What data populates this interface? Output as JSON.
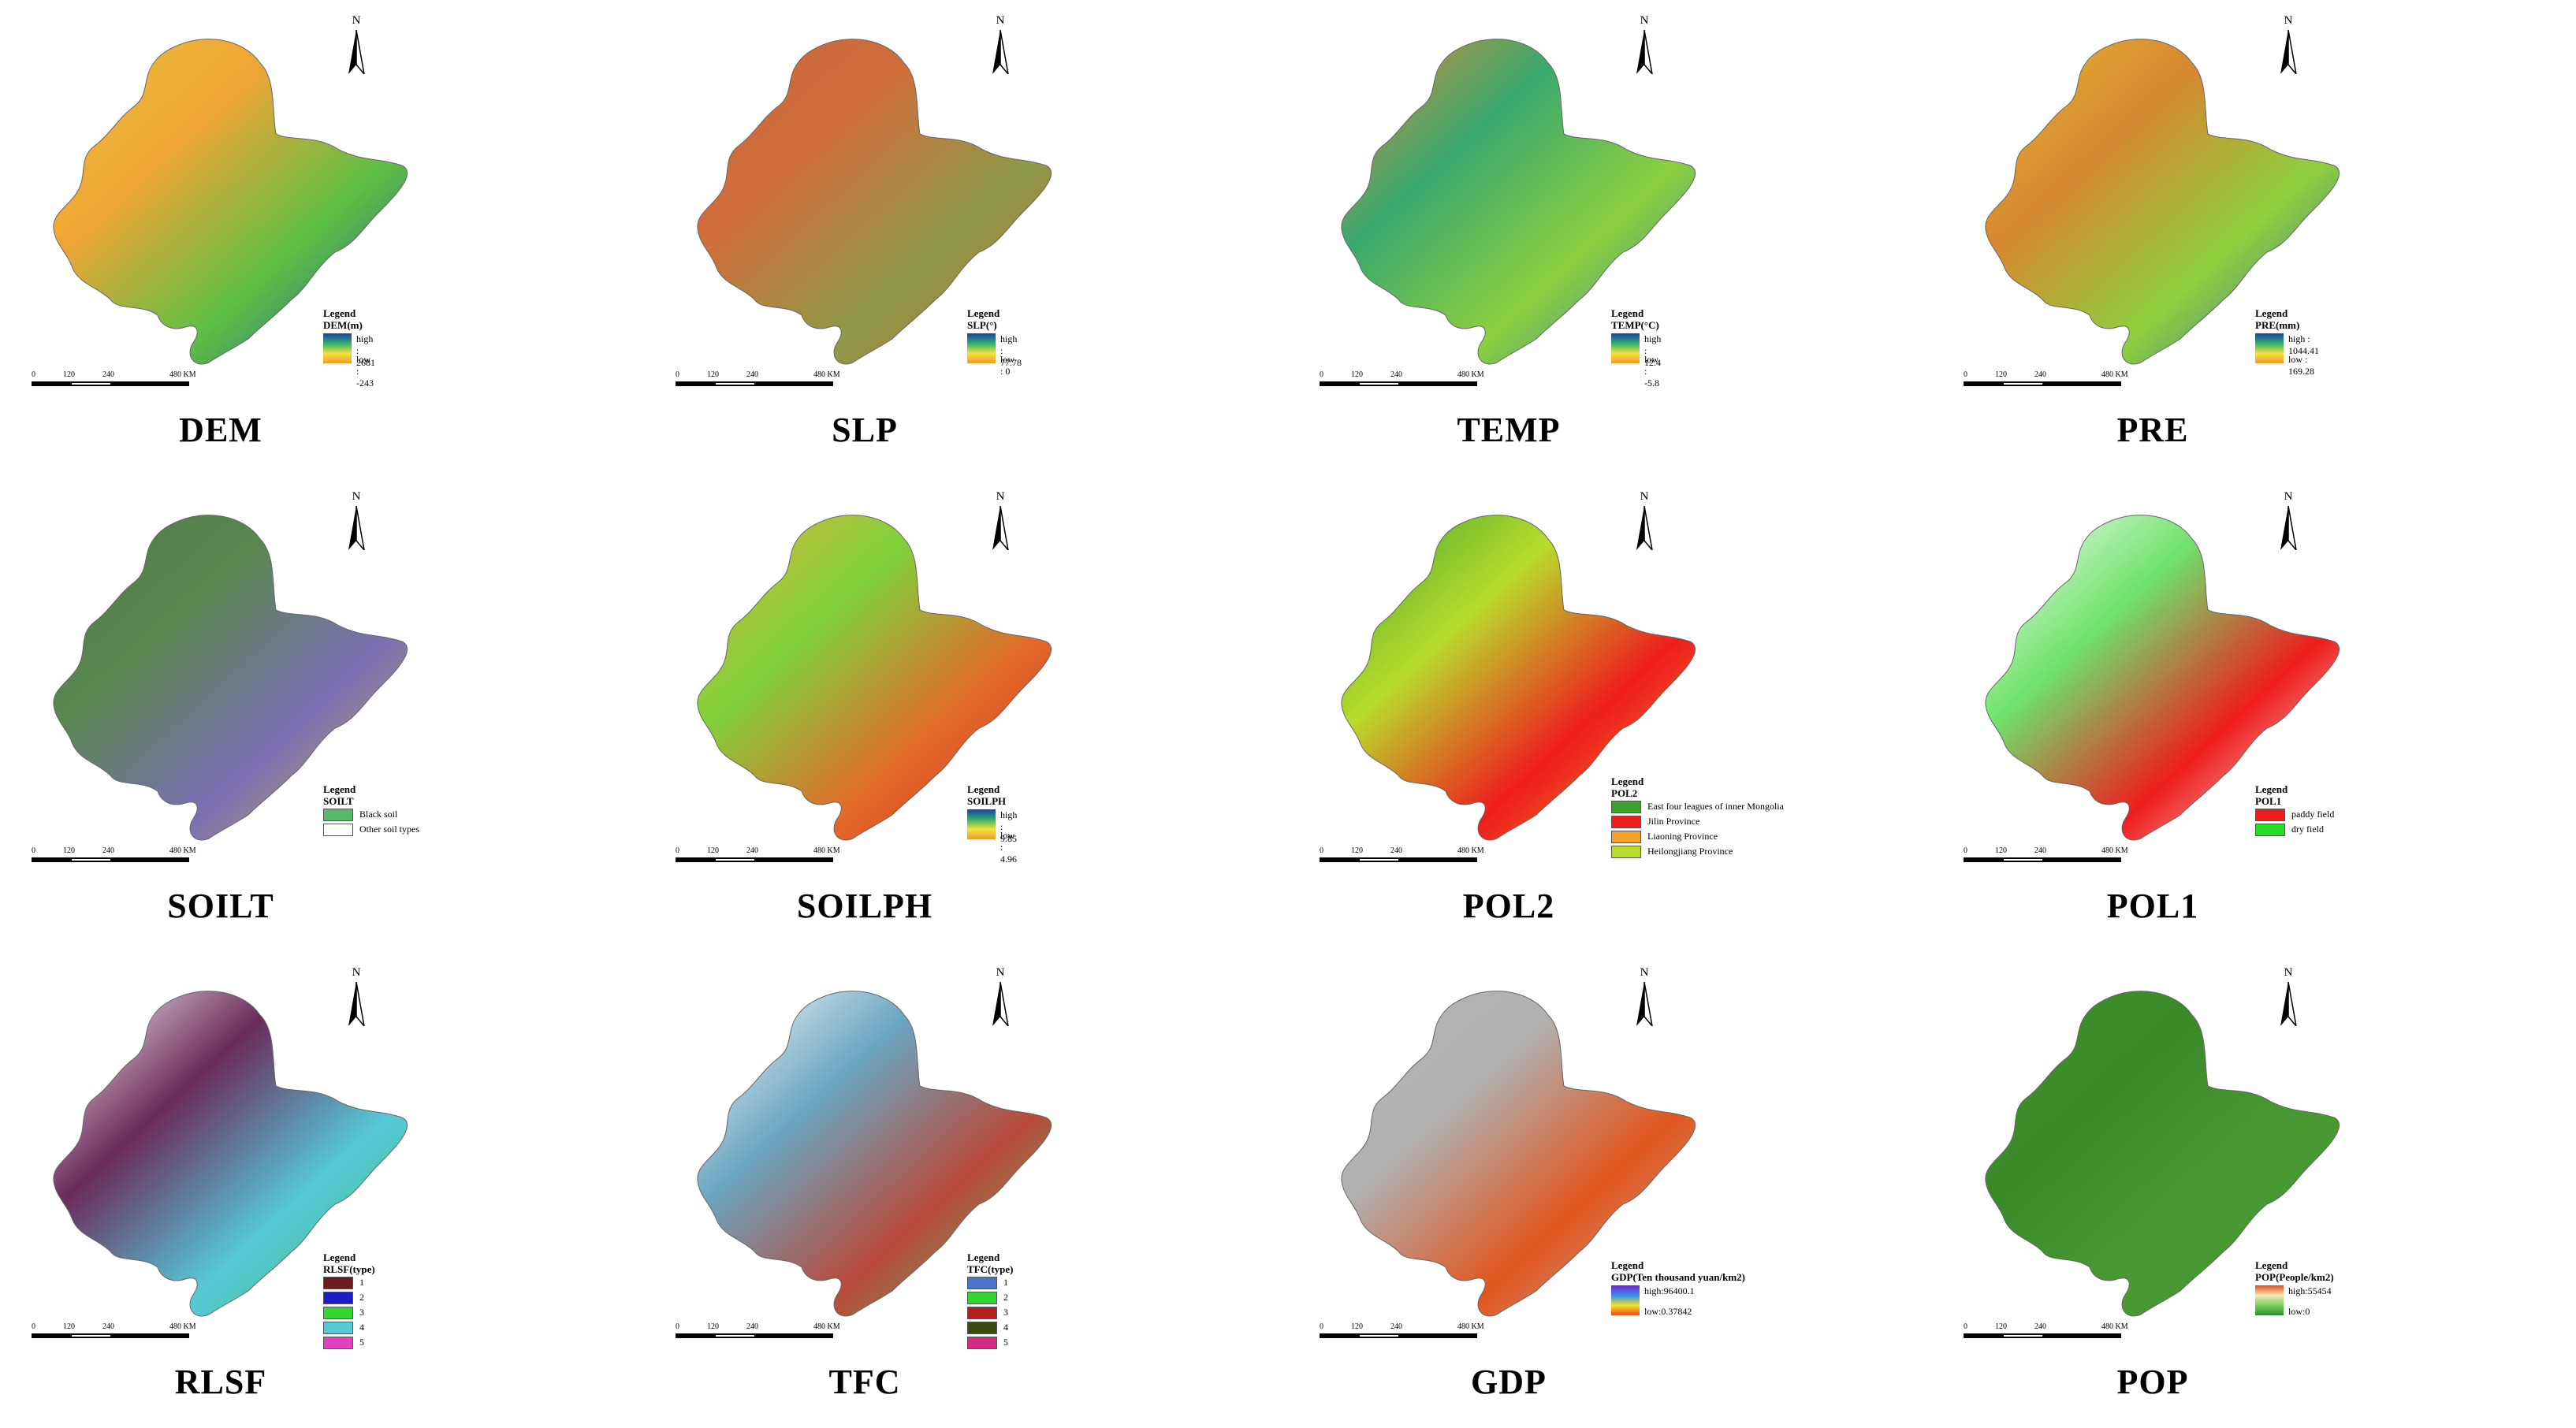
{
  "north_label": "N",
  "scale": {
    "ticks": [
      "0",
      "120",
      "240",
      "480 KM"
    ]
  },
  "panels": [
    {
      "title": "DEM",
      "legend_head": "Legend",
      "legend_title": "DEM(m)",
      "type": "ramp",
      "high": "high : 2681",
      "low": "low : -243",
      "ramp": [
        "#1a3fa8",
        "#2fae6b",
        "#f4e23c",
        "#ef9a2e"
      ],
      "fill": [
        "#e7c13a",
        "#f0a536",
        "#5cbf44",
        "#1f4ca2"
      ]
    },
    {
      "title": "SLP",
      "legend_head": "Legend",
      "legend_title": "SLP(°)",
      "type": "ramp",
      "high": "high : 77.78",
      "low": "low : 0",
      "ramp": [
        "#1a3fa8",
        "#2fae6b",
        "#f4e23c",
        "#ef9a2e"
      ],
      "fill": [
        "#c9653a",
        "#cf6e3a",
        "#8d9a48",
        "#c56638"
      ]
    },
    {
      "title": "TEMP",
      "legend_head": "Legend",
      "legend_title": "TEMP(°C)",
      "type": "ramp",
      "high": "high : 12.4",
      "low": "low : -5.8",
      "ramp": [
        "#1a3fa8",
        "#2fae6b",
        "#f4e23c",
        "#ef9a2e"
      ],
      "fill": [
        "#d98a33",
        "#3aa86f",
        "#8cd03f",
        "#2e7ea8"
      ]
    },
    {
      "title": "PRE",
      "legend_head": "Legend",
      "legend_title": "PRE(mm)",
      "type": "ramp",
      "high": "high : 1044.41",
      "low": "low : 169.28",
      "ramp": [
        "#1a3fa8",
        "#2fae6b",
        "#f4e23c",
        "#ef9a2e"
      ],
      "fill": [
        "#e9b73a",
        "#d6872f",
        "#8ed03e",
        "#2d63a8"
      ]
    },
    {
      "title": "SOILT",
      "legend_head": "Legend",
      "legend_title": "SOILT",
      "type": "classes",
      "classes": [
        {
          "label": "Black soil",
          "color": "#5bb86a"
        },
        {
          "label": "Other soil types",
          "color": "#ffffff"
        }
      ],
      "fill": [
        "#4f7a4a",
        "#5a8650",
        "#7c6fb4",
        "#c8b446"
      ]
    },
    {
      "title": "SOILPH",
      "legend_head": "Legend",
      "legend_title": "SOILPH",
      "type": "ramp",
      "high": "high : 9.85",
      "low": "low : 4.96",
      "ramp": [
        "#1a3fa8",
        "#2fae6b",
        "#f4e23c",
        "#ef9a2e"
      ],
      "fill": [
        "#e7b13a",
        "#7fd23b",
        "#e26a2a",
        "#d42a1c"
      ]
    },
    {
      "title": "POL2",
      "legend_head": "Legend",
      "legend_title": "POL2",
      "type": "classes",
      "classes": [
        {
          "label": "East four leagues of inner Mongolia",
          "color": "#3ba02e"
        },
        {
          "label": "Jilin Province",
          "color": "#ee1d1d"
        },
        {
          "label": "Liaoning Province",
          "color": "#f2a22a"
        },
        {
          "label": "Heilongjiang Province",
          "color": "#b8dc2c"
        }
      ],
      "fill": [
        "#3ba02e",
        "#b8dc2c",
        "#ee1d1d",
        "#f2a22a"
      ]
    },
    {
      "title": "POL1",
      "legend_head": "Legend",
      "legend_title": "POL1",
      "type": "classes",
      "classes": [
        {
          "label": "paddy field",
          "color": "#ee1d1d"
        },
        {
          "label": "dry field",
          "color": "#22dd22"
        }
      ],
      "fill": [
        "#ffffff",
        "#6ee26a",
        "#ee1d1d",
        "#ffffff"
      ]
    },
    {
      "title": "RLSF",
      "legend_head": "Legend",
      "legend_title": "RLSF(type)",
      "type": "classes",
      "classes": [
        {
          "label": "1",
          "color": "#6b1b1b"
        },
        {
          "label": "2",
          "color": "#1d1dc8"
        },
        {
          "label": "3",
          "color": "#35d435"
        },
        {
          "label": "4",
          "color": "#56c9d8"
        },
        {
          "label": "5",
          "color": "#e43ec0"
        }
      ],
      "fill": [
        "#ffffff",
        "#6b2a5a",
        "#56c9d8",
        "#3fbf5a"
      ]
    },
    {
      "title": "TFC",
      "legend_head": "Legend",
      "legend_title": "TFC(type)",
      "type": "classes",
      "classes": [
        {
          "label": "1",
          "color": "#4a74c8"
        },
        {
          "label": "2",
          "color": "#35d435"
        },
        {
          "label": "3",
          "color": "#b02020"
        },
        {
          "label": "4",
          "color": "#3a4a12"
        },
        {
          "label": "5",
          "color": "#d42a86"
        }
      ],
      "fill": [
        "#ffffff",
        "#6aa6c0",
        "#b84a3a",
        "#5bbf6a"
      ]
    },
    {
      "title": "GDP",
      "legend_head": "Legend",
      "legend_title": "GDP(Ten thousand yuan/km2)",
      "type": "ramp",
      "high": "high:96400.1",
      "low": "low:0.37842",
      "ramp": [
        "#7a1fd1",
        "#2f8ff0",
        "#f2e42a",
        "#f04a1a"
      ],
      "fill": [
        "#b5b5b5",
        "#b0b0b0",
        "#e2561e",
        "#b5b5b5"
      ]
    },
    {
      "title": "POP",
      "legend_head": "Legend",
      "legend_title": "POP(People/km2)",
      "type": "ramp",
      "high": "high:55454",
      "low": "low:0",
      "ramp": [
        "#e24a1a",
        "#f5e9b5",
        "#7ad05a",
        "#2e8b2a"
      ],
      "fill": [
        "#3f8f2c",
        "#3a8a2a",
        "#4a9a34",
        "#3f8f2c"
      ]
    }
  ]
}
